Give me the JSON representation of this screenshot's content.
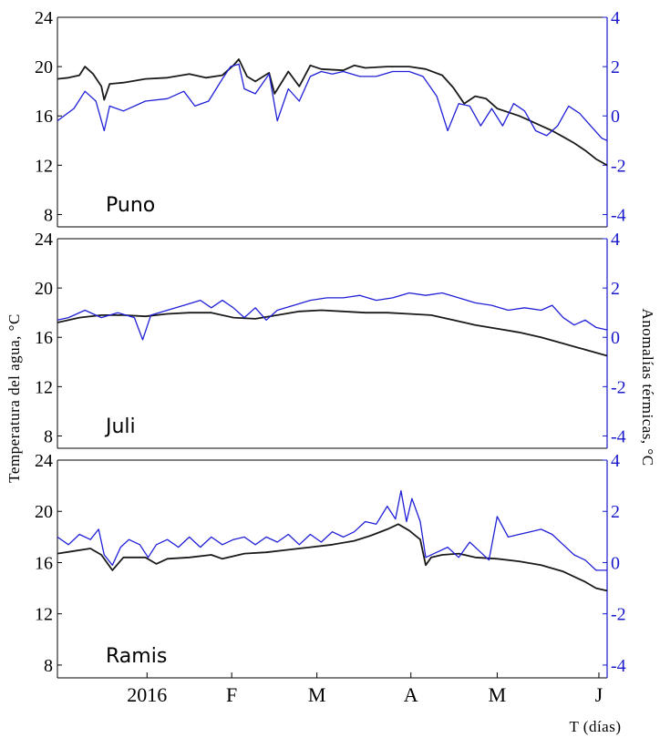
{
  "colors": {
    "water_temperature": "#1a1a1a",
    "thermal_anomaly": "#1f1fd6",
    "right_axis": "#1a1acc"
  },
  "axes": {
    "left_title": "Temperatura del agua, °C",
    "right_title": "Anomalías térmicas, °C",
    "x_title": "T (días)"
  },
  "chart_data": [
    {
      "type": "line",
      "station": "Puno",
      "left_ticks": [
        "24",
        "20",
        "16",
        "12",
        "8"
      ],
      "right_ticks": [
        "4",
        "2",
        "0",
        "-2",
        "-4"
      ],
      "x_ticks": [],
      "ylim_left": [
        7,
        24
      ],
      "ylim_right": [
        -4.5,
        4
      ],
      "x_range": [
        0,
        1
      ],
      "series": [
        {
          "axis": "left",
          "color_key": "water_temperature",
          "points": [
            [
              0.0,
              19.0
            ],
            [
              0.02,
              19.1
            ],
            [
              0.04,
              19.3
            ],
            [
              0.05,
              20.0
            ],
            [
              0.065,
              19.4
            ],
            [
              0.08,
              18.4
            ],
            [
              0.085,
              17.3
            ],
            [
              0.095,
              18.6
            ],
            [
              0.12,
              18.7
            ],
            [
              0.16,
              19.0
            ],
            [
              0.2,
              19.1
            ],
            [
              0.24,
              19.4
            ],
            [
              0.27,
              19.1
            ],
            [
              0.3,
              19.3
            ],
            [
              0.32,
              20.1
            ],
            [
              0.33,
              20.6
            ],
            [
              0.345,
              19.2
            ],
            [
              0.36,
              18.8
            ],
            [
              0.385,
              19.5
            ],
            [
              0.395,
              17.8
            ],
            [
              0.42,
              19.6
            ],
            [
              0.44,
              18.4
            ],
            [
              0.46,
              20.1
            ],
            [
              0.48,
              19.8
            ],
            [
              0.52,
              19.7
            ],
            [
              0.54,
              20.1
            ],
            [
              0.56,
              19.9
            ],
            [
              0.6,
              20.0
            ],
            [
              0.64,
              20.0
            ],
            [
              0.67,
              19.8
            ],
            [
              0.7,
              19.3
            ],
            [
              0.72,
              18.3
            ],
            [
              0.74,
              17.0
            ],
            [
              0.76,
              17.6
            ],
            [
              0.78,
              17.4
            ],
            [
              0.8,
              16.6
            ],
            [
              0.82,
              16.3
            ],
            [
              0.84,
              16.0
            ],
            [
              0.86,
              15.6
            ],
            [
              0.88,
              15.2
            ],
            [
              0.9,
              14.8
            ],
            [
              0.92,
              14.3
            ],
            [
              0.94,
              13.8
            ],
            [
              0.96,
              13.2
            ],
            [
              0.98,
              12.5
            ],
            [
              1.0,
              12.0
            ]
          ]
        },
        {
          "axis": "right",
          "color_key": "thermal_anomaly",
          "points": [
            [
              0.0,
              -0.2
            ],
            [
              0.03,
              0.3
            ],
            [
              0.05,
              1.0
            ],
            [
              0.07,
              0.6
            ],
            [
              0.085,
              -0.6
            ],
            [
              0.095,
              0.4
            ],
            [
              0.12,
              0.2
            ],
            [
              0.16,
              0.6
            ],
            [
              0.2,
              0.7
            ],
            [
              0.23,
              1.0
            ],
            [
              0.25,
              0.4
            ],
            [
              0.275,
              0.6
            ],
            [
              0.3,
              1.5
            ],
            [
              0.315,
              2.0
            ],
            [
              0.33,
              2.1
            ],
            [
              0.34,
              1.1
            ],
            [
              0.36,
              0.9
            ],
            [
              0.385,
              1.7
            ],
            [
              0.4,
              -0.2
            ],
            [
              0.42,
              1.1
            ],
            [
              0.44,
              0.6
            ],
            [
              0.46,
              1.6
            ],
            [
              0.48,
              1.8
            ],
            [
              0.5,
              1.7
            ],
            [
              0.52,
              1.8
            ],
            [
              0.55,
              1.6
            ],
            [
              0.58,
              1.6
            ],
            [
              0.61,
              1.8
            ],
            [
              0.64,
              1.8
            ],
            [
              0.665,
              1.6
            ],
            [
              0.69,
              0.8
            ],
            [
              0.71,
              -0.6
            ],
            [
              0.73,
              0.5
            ],
            [
              0.75,
              0.4
            ],
            [
              0.77,
              -0.4
            ],
            [
              0.79,
              0.3
            ],
            [
              0.81,
              -0.4
            ],
            [
              0.83,
              0.5
            ],
            [
              0.85,
              0.2
            ],
            [
              0.87,
              -0.6
            ],
            [
              0.89,
              -0.8
            ],
            [
              0.91,
              -0.4
            ],
            [
              0.93,
              0.4
            ],
            [
              0.95,
              0.1
            ],
            [
              0.97,
              -0.4
            ],
            [
              0.99,
              -0.9
            ],
            [
              1.0,
              -1.0
            ]
          ]
        }
      ]
    },
    {
      "type": "line",
      "station": "Juli",
      "left_ticks": [
        "24",
        "20",
        "16",
        "12",
        "8"
      ],
      "right_ticks": [
        "4",
        "2",
        "0",
        "-2",
        "-4"
      ],
      "x_ticks": [],
      "ylim_left": [
        7,
        24
      ],
      "ylim_right": [
        -4.5,
        4
      ],
      "x_range": [
        0,
        1
      ],
      "series": [
        {
          "axis": "left",
          "color_key": "water_temperature",
          "points": [
            [
              0.0,
              17.2
            ],
            [
              0.04,
              17.6
            ],
            [
              0.08,
              17.8
            ],
            [
              0.12,
              17.8
            ],
            [
              0.16,
              17.7
            ],
            [
              0.2,
              17.9
            ],
            [
              0.24,
              18.0
            ],
            [
              0.28,
              18.0
            ],
            [
              0.32,
              17.6
            ],
            [
              0.36,
              17.5
            ],
            [
              0.4,
              17.8
            ],
            [
              0.44,
              18.1
            ],
            [
              0.48,
              18.2
            ],
            [
              0.52,
              18.1
            ],
            [
              0.56,
              18.0
            ],
            [
              0.6,
              18.0
            ],
            [
              0.64,
              17.9
            ],
            [
              0.68,
              17.8
            ],
            [
              0.72,
              17.4
            ],
            [
              0.76,
              17.0
            ],
            [
              0.8,
              16.7
            ],
            [
              0.84,
              16.4
            ],
            [
              0.88,
              16.0
            ],
            [
              0.92,
              15.5
            ],
            [
              0.96,
              15.0
            ],
            [
              1.0,
              14.5
            ]
          ]
        },
        {
          "axis": "right",
          "color_key": "thermal_anomaly",
          "points": [
            [
              0.0,
              0.7
            ],
            [
              0.02,
              0.8
            ],
            [
              0.05,
              1.1
            ],
            [
              0.08,
              0.8
            ],
            [
              0.11,
              1.0
            ],
            [
              0.14,
              0.8
            ],
            [
              0.155,
              -0.1
            ],
            [
              0.17,
              0.9
            ],
            [
              0.2,
              1.1
            ],
            [
              0.23,
              1.3
            ],
            [
              0.26,
              1.5
            ],
            [
              0.28,
              1.2
            ],
            [
              0.3,
              1.5
            ],
            [
              0.32,
              1.2
            ],
            [
              0.34,
              0.8
            ],
            [
              0.36,
              1.2
            ],
            [
              0.38,
              0.7
            ],
            [
              0.4,
              1.1
            ],
            [
              0.43,
              1.3
            ],
            [
              0.46,
              1.5
            ],
            [
              0.49,
              1.6
            ],
            [
              0.52,
              1.6
            ],
            [
              0.55,
              1.7
            ],
            [
              0.58,
              1.5
            ],
            [
              0.61,
              1.6
            ],
            [
              0.64,
              1.8
            ],
            [
              0.67,
              1.7
            ],
            [
              0.7,
              1.8
            ],
            [
              0.73,
              1.6
            ],
            [
              0.76,
              1.4
            ],
            [
              0.79,
              1.3
            ],
            [
              0.82,
              1.1
            ],
            [
              0.85,
              1.2
            ],
            [
              0.88,
              1.1
            ],
            [
              0.9,
              1.3
            ],
            [
              0.92,
              0.8
            ],
            [
              0.94,
              0.5
            ],
            [
              0.96,
              0.7
            ],
            [
              0.98,
              0.4
            ],
            [
              1.0,
              0.3
            ]
          ]
        }
      ]
    },
    {
      "type": "line",
      "station": "Ramis",
      "left_ticks": [
        "24",
        "20",
        "16",
        "12",
        "8"
      ],
      "right_ticks": [
        "4",
        "2",
        "0",
        "-2",
        "-4"
      ],
      "x_ticks": [
        "2016",
        "F",
        "M",
        "A",
        "M",
        "J"
      ],
      "x_tick_positions": [
        0.163,
        0.317,
        0.472,
        0.643,
        0.8,
        0.985
      ],
      "ylim_left": [
        7,
        24
      ],
      "ylim_right": [
        -4.5,
        4
      ],
      "x_range": [
        0,
        1
      ],
      "series": [
        {
          "axis": "left",
          "color_key": "water_temperature",
          "points": [
            [
              0.0,
              16.7
            ],
            [
              0.03,
              16.9
            ],
            [
              0.06,
              17.1
            ],
            [
              0.08,
              16.6
            ],
            [
              0.1,
              15.4
            ],
            [
              0.12,
              16.4
            ],
            [
              0.16,
              16.4
            ],
            [
              0.18,
              15.9
            ],
            [
              0.2,
              16.3
            ],
            [
              0.24,
              16.4
            ],
            [
              0.28,
              16.6
            ],
            [
              0.3,
              16.3
            ],
            [
              0.34,
              16.7
            ],
            [
              0.38,
              16.8
            ],
            [
              0.42,
              17.0
            ],
            [
              0.46,
              17.2
            ],
            [
              0.5,
              17.4
            ],
            [
              0.54,
              17.7
            ],
            [
              0.57,
              18.1
            ],
            [
              0.6,
              18.6
            ],
            [
              0.62,
              19.0
            ],
            [
              0.64,
              18.5
            ],
            [
              0.66,
              17.8
            ],
            [
              0.67,
              15.8
            ],
            [
              0.68,
              16.4
            ],
            [
              0.7,
              16.6
            ],
            [
              0.73,
              16.7
            ],
            [
              0.76,
              16.4
            ],
            [
              0.8,
              16.3
            ],
            [
              0.84,
              16.1
            ],
            [
              0.88,
              15.8
            ],
            [
              0.92,
              15.3
            ],
            [
              0.94,
              14.9
            ],
            [
              0.96,
              14.5
            ],
            [
              0.98,
              14.0
            ],
            [
              1.0,
              13.8
            ]
          ]
        },
        {
          "axis": "right",
          "color_key": "thermal_anomaly",
          "points": [
            [
              0.0,
              1.0
            ],
            [
              0.02,
              0.7
            ],
            [
              0.04,
              1.1
            ],
            [
              0.06,
              0.9
            ],
            [
              0.075,
              1.3
            ],
            [
              0.085,
              0.3
            ],
            [
              0.1,
              -0.1
            ],
            [
              0.115,
              0.6
            ],
            [
              0.13,
              0.9
            ],
            [
              0.15,
              0.7
            ],
            [
              0.165,
              0.2
            ],
            [
              0.18,
              0.7
            ],
            [
              0.2,
              0.9
            ],
            [
              0.22,
              0.6
            ],
            [
              0.24,
              1.0
            ],
            [
              0.26,
              0.6
            ],
            [
              0.28,
              1.0
            ],
            [
              0.3,
              0.7
            ],
            [
              0.32,
              0.9
            ],
            [
              0.34,
              1.0
            ],
            [
              0.36,
              0.7
            ],
            [
              0.38,
              1.0
            ],
            [
              0.4,
              0.8
            ],
            [
              0.42,
              1.1
            ],
            [
              0.44,
              0.7
            ],
            [
              0.46,
              1.1
            ],
            [
              0.48,
              0.8
            ],
            [
              0.5,
              1.2
            ],
            [
              0.52,
              1.0
            ],
            [
              0.54,
              1.2
            ],
            [
              0.56,
              1.6
            ],
            [
              0.58,
              1.5
            ],
            [
              0.6,
              2.2
            ],
            [
              0.615,
              1.7
            ],
            [
              0.625,
              2.8
            ],
            [
              0.635,
              1.6
            ],
            [
              0.645,
              2.5
            ],
            [
              0.66,
              1.6
            ],
            [
              0.67,
              0.2
            ],
            [
              0.69,
              0.4
            ],
            [
              0.71,
              0.6
            ],
            [
              0.73,
              0.2
            ],
            [
              0.75,
              0.8
            ],
            [
              0.77,
              0.4
            ],
            [
              0.785,
              0.1
            ],
            [
              0.8,
              1.8
            ],
            [
              0.82,
              1.0
            ],
            [
              0.84,
              1.1
            ],
            [
              0.86,
              1.2
            ],
            [
              0.88,
              1.3
            ],
            [
              0.9,
              1.1
            ],
            [
              0.92,
              0.7
            ],
            [
              0.94,
              0.3
            ],
            [
              0.96,
              0.1
            ],
            [
              0.98,
              -0.3
            ],
            [
              1.0,
              -0.3
            ]
          ]
        }
      ]
    }
  ]
}
